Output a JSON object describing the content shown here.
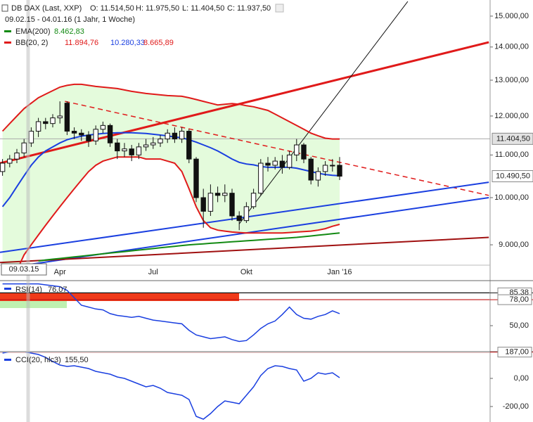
{
  "chart_data": [
    {
      "type": "candlestick",
      "title": "DB DAX (Last, XXP)",
      "subtitle": "09.02.15 - 04.01.16 (1 Jahr, 1 Woche)",
      "ohlc": [
        "O: 11.514,50",
        "H: 11.975,50",
        "L: 11.404,50",
        "C: 11.937,50"
      ],
      "crosshair_label": "09.03.15",
      "log_scale": true,
      "categories": [
        null,
        null,
        null,
        null,
        null,
        null,
        null,
        null,
        "Apr",
        null,
        null,
        null,
        null,
        null,
        null,
        null,
        null,
        null,
        null,
        null,
        null,
        "Jul",
        null,
        null,
        null,
        null,
        null,
        null,
        null,
        null,
        null,
        null,
        null,
        null,
        "Okt",
        null,
        null,
        null,
        null,
        null,
        null,
        null,
        null,
        null,
        null,
        null,
        null,
        "Jan '16"
      ],
      "open": [
        10600,
        10800,
        10900,
        11050,
        11300,
        11600,
        11850,
        11800,
        11950,
        12350,
        11600,
        11550,
        11500,
        11350,
        11650,
        11750,
        11300,
        11100,
        11150,
        11000,
        11200,
        11250,
        11300,
        11400,
        11550,
        11400,
        11600,
        10900,
        10000,
        9700,
        10100,
        10050,
        10100,
        9600,
        9500,
        9800,
        10100,
        10800,
        10750,
        10850,
        10700,
        11000,
        11250,
        10900,
        10400,
        10600,
        10750,
        10750
      ],
      "high": [
        10900,
        11000,
        11150,
        11400,
        11700,
        11950,
        11950,
        12050,
        12400,
        12400,
        11700,
        11650,
        11600,
        11750,
        11850,
        11800,
        11400,
        11300,
        11250,
        11300,
        11400,
        11450,
        11500,
        11650,
        11700,
        11700,
        11650,
        10950,
        10200,
        10300,
        10250,
        10300,
        10200,
        9700,
        9900,
        10200,
        10900,
        10950,
        10950,
        11000,
        11100,
        11400,
        11300,
        10950,
        10700,
        10850,
        10900,
        10950
      ],
      "low": [
        10500,
        10700,
        10800,
        10950,
        11200,
        11450,
        11650,
        11700,
        11800,
        11500,
        11400,
        11350,
        11200,
        11250,
        11550,
        11200,
        10900,
        10950,
        10850,
        10900,
        11100,
        11150,
        11200,
        11300,
        11300,
        11300,
        10800,
        9900,
        9350,
        9600,
        9900,
        9900,
        9500,
        9300,
        9450,
        9750,
        10050,
        10600,
        10650,
        10550,
        10650,
        10850,
        10800,
        10300,
        10250,
        10500,
        10600,
        10400
      ],
      "close": [
        10800,
        10900,
        11050,
        11300,
        11600,
        11850,
        11800,
        11950,
        12000,
        11600,
        11550,
        11500,
        11350,
        11650,
        11750,
        11300,
        11100,
        11150,
        11000,
        11200,
        11250,
        11300,
        11400,
        11550,
        11400,
        11600,
        10900,
        10000,
        9700,
        10100,
        10050,
        10100,
        9600,
        9500,
        9800,
        10100,
        10800,
        10750,
        10850,
        10700,
        11000,
        11250,
        10900,
        10400,
        10600,
        10750,
        10750,
        10490.5
      ],
      "series": [
        {
          "name": "EMA(200)",
          "legend_value": "8.462,83",
          "color": "#138a13",
          "values": [
            null,
            null,
            null,
            null,
            null,
            8680,
            8700,
            8715,
            8730,
            8745,
            8760,
            8775,
            8790,
            8805,
            8820,
            8835,
            8850,
            8865,
            8880,
            8895,
            8910,
            8925,
            8940,
            8955,
            8970,
            8985,
            9000,
            9010,
            9020,
            9030,
            9040,
            9050,
            9060,
            9070,
            9080,
            9090,
            9100,
            9110,
            9120,
            9130,
            9140,
            9150,
            9165,
            9180,
            9195,
            9210,
            9225,
            9240
          ]
        },
        {
          "name": "BB(20, 2)",
          "legend_values": [
            "11.894,76",
            "10.280,33",
            "8.665,89"
          ],
          "color": "#e01a1a",
          "middle_color": "#1a3fe0",
          "fill": "#e4fbdc",
          "upper": [
            11600,
            11800,
            12000,
            12200,
            12350,
            12500,
            12600,
            12700,
            12800,
            12850,
            12880,
            12880,
            12850,
            12820,
            12800,
            12780,
            12760,
            12720,
            12680,
            12650,
            12620,
            12600,
            12580,
            12560,
            12550,
            12540,
            12500,
            12450,
            12400,
            12350,
            12300,
            12320,
            12340,
            12320,
            12280,
            12250,
            12200,
            12150,
            12050,
            11950,
            11850,
            11750,
            11650,
            11550,
            11480,
            11420,
            11400,
            11400
          ],
          "middle": [
            9800,
            10000,
            10250,
            10500,
            10750,
            10950,
            11100,
            11200,
            11300,
            11380,
            11430,
            11470,
            11500,
            11520,
            11540,
            11550,
            11560,
            11560,
            11560,
            11550,
            11540,
            11520,
            11500,
            11480,
            11450,
            11430,
            11380,
            11320,
            11250,
            11180,
            11100,
            11000,
            10900,
            10820,
            10780,
            10760,
            10720,
            10700,
            10700,
            10700,
            10700,
            10680,
            10640,
            10600,
            10560,
            10530,
            10510,
            10500
          ],
          "lower": [
            8000,
            8200,
            8500,
            8800,
            9000,
            9200,
            9400,
            9600,
            9800,
            10000,
            10200,
            10400,
            10600,
            10750,
            10850,
            10900,
            10950,
            10950,
            10950,
            10950,
            10900,
            10900,
            10900,
            10850,
            10800,
            10600,
            10200,
            9800,
            9500,
            9350,
            9300,
            9280,
            9260,
            9250,
            9240,
            9240,
            9240,
            9240,
            9240,
            9240,
            9250,
            9260,
            9270,
            9280,
            9300,
            9330,
            9380,
            9420
          ]
        }
      ],
      "trendlines": [
        {
          "color": "#e01a1a",
          "width": 3,
          "dashed": false,
          "from": [
            -0.35,
            10800
          ],
          "to": [
            67.8,
            14150
          ]
        },
        {
          "color": "#e01a1a",
          "width": 1.5,
          "dashed": true,
          "from": [
            8.7,
            12400
          ],
          "to": [
            67.8,
            10050
          ]
        },
        {
          "color": "#1a3fe0",
          "width": 2,
          "dashed": false,
          "from": [
            -0.35,
            8850
          ],
          "to": [
            67.8,
            10350
          ]
        },
        {
          "color": "#1a3fe0",
          "width": 2,
          "dashed": false,
          "from": [
            3.6,
            8611
          ],
          "to": [
            67.8,
            10000
          ]
        },
        {
          "color": "#a01010",
          "width": 2,
          "dashed": false,
          "from": [
            -0.35,
            8650
          ],
          "to": [
            67.8,
            9150
          ]
        },
        {
          "color": "#111111",
          "width": 1,
          "dashed": false,
          "from": [
            33,
            9430
          ],
          "to": [
            56.5,
            15500
          ]
        }
      ],
      "ylim": [
        8600,
        15550
      ],
      "yticks": [
        {
          "value": 9000,
          "label": "9.000,00"
        },
        {
          "value": 10000,
          "label": "10.000,00"
        },
        {
          "value": 11000,
          "label": "11.000,00"
        },
        {
          "value": 12000,
          "label": "12.000,00"
        },
        {
          "value": 13000,
          "label": "13.000,00"
        },
        {
          "value": 14000,
          "label": "14.000,00"
        },
        {
          "value": 15000,
          "label": "15.000,00"
        }
      ],
      "price_labels": [
        {
          "value": 11404.5,
          "label": "11.404,50"
        },
        {
          "value": 10490.5,
          "label": "10.490,50"
        }
      ]
    },
    {
      "type": "line",
      "name": "RSI(14)",
      "legend_value": "76,07",
      "color": "#1a3fe0",
      "values": [
        95,
        95,
        95,
        95,
        95,
        95,
        94,
        93,
        92,
        88,
        80,
        72,
        70,
        68,
        67,
        63,
        61,
        60,
        59,
        60,
        58,
        56,
        55,
        54,
        53,
        52,
        45,
        40,
        38,
        36,
        37,
        38,
        35,
        33,
        34,
        40,
        47,
        52,
        55,
        62,
        70,
        62,
        58,
        57,
        60,
        62,
        66,
        63
      ],
      "ylim": [
        22,
        97
      ],
      "yticks": [
        {
          "value": 50,
          "label": "50,00"
        }
      ],
      "levels": [
        {
          "value": 85.38,
          "label": "85,38",
          "color": "#111111"
        },
        {
          "value": 78,
          "label": "78,00",
          "color": "#c01010"
        }
      ]
    },
    {
      "type": "line",
      "name": "CCI(20, hlc3)",
      "legend_value": "155,50",
      "color": "#1a3fe0",
      "values": [
        180,
        190,
        200,
        190,
        180,
        170,
        150,
        120,
        95,
        85,
        90,
        80,
        70,
        50,
        40,
        30,
        10,
        0,
        -20,
        -40,
        -60,
        -50,
        -70,
        -100,
        -110,
        -120,
        -150,
        -270,
        -290,
        -250,
        -200,
        -160,
        -170,
        -180,
        -120,
        -60,
        20,
        70,
        90,
        85,
        70,
        60,
        -20,
        0,
        40,
        30,
        40,
        5
      ],
      "ylim": [
        -310,
        190
      ],
      "yticks": [
        {
          "value": 0,
          "label": "0,00"
        },
        {
          "value": -200,
          "label": "-200,00"
        }
      ],
      "levels": [
        {
          "value": 187,
          "label": "187,00",
          "color": "#c01010"
        }
      ]
    }
  ]
}
